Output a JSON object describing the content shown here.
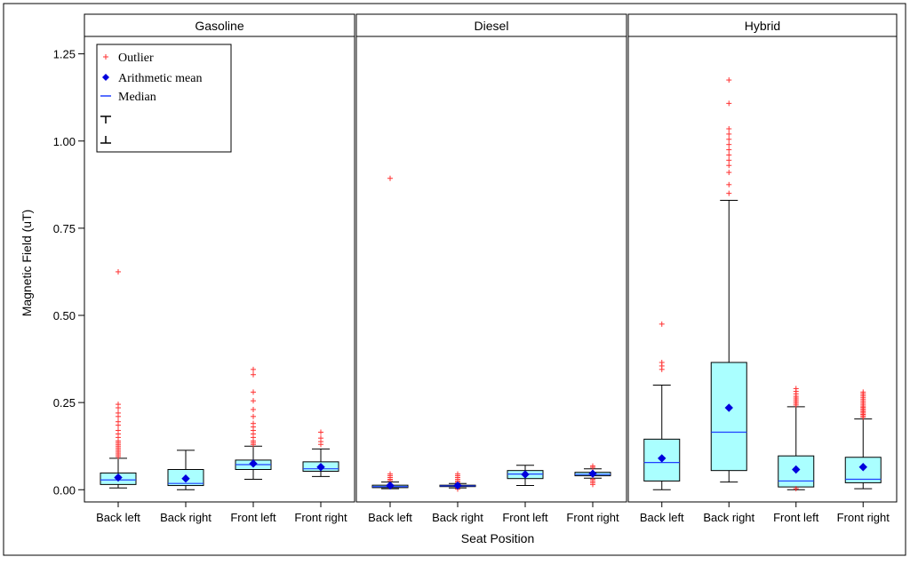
{
  "chart_data": {
    "type": "box",
    "y_axis": {
      "label": "Magnetic Field (uT)",
      "min": -0.035,
      "max": 1.3,
      "ticks": [
        0.0,
        0.25,
        0.5,
        0.75,
        1.0,
        1.25
      ],
      "tick_labels": [
        "0.00",
        "0.25",
        "0.50",
        "0.75",
        "1.00",
        "1.25"
      ]
    },
    "x_axis": {
      "label": "Seat Position"
    },
    "categories": [
      "Back left",
      "Back right",
      "Front left",
      "Front right"
    ],
    "colors": {
      "box_fill": "#aaffff",
      "median": "#2040ff",
      "mean": "#0000dd",
      "outlier": "#ff3030",
      "frame": "#000000"
    },
    "legend": {
      "location": "top-left",
      "items": [
        {
          "symbol": "plus",
          "label": "Outlier"
        },
        {
          "symbol": "diamond",
          "label": "Arithmetic mean"
        },
        {
          "symbol": "line",
          "label": "Median"
        },
        {
          "symbol": "whisker-top",
          "label": ""
        },
        {
          "symbol": "whisker-bottom",
          "label": ""
        }
      ]
    },
    "panels": [
      {
        "title": "Gasoline",
        "boxes": [
          {
            "category": "Back left",
            "whisker_low": 0.005,
            "q1": 0.015,
            "median": 0.028,
            "q3": 0.048,
            "whisker_high": 0.09,
            "mean": 0.035,
            "outliers": [
              0.095,
              0.1,
              0.105,
              0.11,
              0.115,
              0.12,
              0.125,
              0.13,
              0.135,
              0.14,
              0.15,
              0.16,
              0.17,
              0.185,
              0.195,
              0.21,
              0.22,
              0.235,
              0.245,
              0.625
            ]
          },
          {
            "category": "Back right",
            "whisker_low": 0.0,
            "q1": 0.012,
            "median": 0.018,
            "q3": 0.058,
            "whisker_high": 0.113,
            "mean": 0.032,
            "outliers": []
          },
          {
            "category": "Front left",
            "whisker_low": 0.03,
            "q1": 0.058,
            "median": 0.072,
            "q3": 0.085,
            "whisker_high": 0.125,
            "mean": 0.075,
            "outliers": [
              0.13,
              0.135,
              0.14,
              0.15,
              0.16,
              0.17,
              0.18,
              0.19,
              0.21,
              0.23,
              0.255,
              0.28,
              0.33,
              0.345
            ]
          },
          {
            "category": "Front right",
            "whisker_low": 0.038,
            "q1": 0.053,
            "median": 0.06,
            "q3": 0.08,
            "whisker_high": 0.117,
            "mean": 0.065,
            "outliers": [
              0.13,
              0.138,
              0.148,
              0.165
            ]
          }
        ]
      },
      {
        "title": "Diesel",
        "boxes": [
          {
            "category": "Back left",
            "whisker_low": 0.003,
            "q1": 0.006,
            "median": 0.009,
            "q3": 0.013,
            "whisker_high": 0.022,
            "mean": 0.012,
            "outliers": [
              0.026,
              0.03,
              0.035,
              0.04,
              0.045,
              0.893
            ]
          },
          {
            "category": "Back right",
            "whisker_low": 0.005,
            "q1": 0.009,
            "median": 0.011,
            "q3": 0.013,
            "whisker_high": 0.018,
            "mean": 0.012,
            "outliers": [
              0.002,
              0.021,
              0.025,
              0.03,
              0.035,
              0.04,
              0.045
            ]
          },
          {
            "category": "Front left",
            "whisker_low": 0.012,
            "q1": 0.032,
            "median": 0.045,
            "q3": 0.055,
            "whisker_high": 0.07,
            "mean": 0.044,
            "outliers": []
          },
          {
            "category": "Front right",
            "whisker_low": 0.033,
            "q1": 0.04,
            "median": 0.044,
            "q3": 0.05,
            "whisker_high": 0.06,
            "mean": 0.046,
            "outliers": [
              0.015,
              0.02,
              0.025,
              0.03,
              0.064,
              0.068
            ]
          }
        ]
      },
      {
        "title": "Hybrid",
        "boxes": [
          {
            "category": "Back left",
            "whisker_low": 0.0,
            "q1": 0.025,
            "median": 0.078,
            "q3": 0.145,
            "whisker_high": 0.3,
            "mean": 0.09,
            "outliers": [
              0.345,
              0.355,
              0.365,
              0.475
            ]
          },
          {
            "category": "Back right",
            "whisker_low": 0.022,
            "q1": 0.055,
            "median": 0.165,
            "q3": 0.365,
            "whisker_high": 0.83,
            "mean": 0.235,
            "outliers": [
              0.85,
              0.875,
              0.91,
              0.93,
              0.945,
              0.96,
              0.975,
              0.99,
              1.005,
              1.02,
              1.035,
              1.108,
              1.175
            ]
          },
          {
            "category": "Front left",
            "whisker_low": 0.0,
            "q1": 0.008,
            "median": 0.025,
            "q3": 0.097,
            "whisker_high": 0.238,
            "mean": 0.058,
            "outliers": [
              0.003,
              0.243,
              0.248,
              0.253,
              0.258,
              0.263,
              0.268,
              0.275,
              0.282,
              0.29
            ]
          },
          {
            "category": "Front right",
            "whisker_low": 0.003,
            "q1": 0.02,
            "median": 0.03,
            "q3": 0.093,
            "whisker_high": 0.203,
            "mean": 0.065,
            "outliers": [
              0.208,
              0.212,
              0.216,
              0.22,
              0.224,
              0.228,
              0.232,
              0.236,
              0.24,
              0.245,
              0.25,
              0.255,
              0.26,
              0.265,
              0.27,
              0.275,
              0.28
            ]
          }
        ]
      }
    ]
  }
}
